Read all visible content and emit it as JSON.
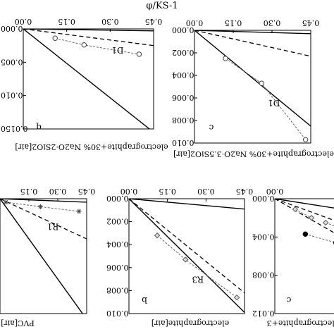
{
  "top_label": "φ/KS-1",
  "chart_data": [
    {
      "type": "line",
      "id": "p1",
      "panel_letter": "q",
      "xlabel": "electrographite+30% Na2O·2SiO2[air]",
      "xlim": [
        0,
        0.45
      ],
      "ylim": [
        0,
        0.015
      ],
      "xticks": [
        "0.00",
        "0.15",
        "0.30",
        "0.45"
      ],
      "yticks": [
        "0.000",
        "0.005",
        "0.010",
        "0.0150"
      ],
      "lines": [
        {
          "style": "solid",
          "x": [
            0,
            0.45
          ],
          "y": [
            0,
            0.0003
          ]
        },
        {
          "style": "dashed",
          "x": [
            0,
            0.45
          ],
          "y": [
            0,
            0.0025
          ]
        },
        {
          "style": "solid",
          "x": [
            0,
            0.45
          ],
          "y": [
            0,
            0.0155
          ]
        }
      ],
      "series": [
        {
          "name": "D1",
          "marker": "open-circle",
          "x": [
            0.11,
            0.21,
            0.4
          ],
          "y": [
            0.0014,
            0.0024,
            0.0038
          ]
        }
      ]
    },
    {
      "type": "line",
      "id": "p2",
      "panel_letter": "c",
      "xlabel": "electrographite+30% Na2O·3.5SiO2[air]",
      "xlim": [
        0,
        0.45
      ],
      "ylim": [
        0,
        0.01
      ],
      "xticks": [
        "0.00",
        "0.15",
        "0.30",
        "0.45"
      ],
      "yticks": [
        "0.000",
        "0.002",
        "0.004",
        "0.006",
        "0.008",
        "0.010"
      ],
      "lines": [
        {
          "style": "solid",
          "x": [
            0,
            0.45
          ],
          "y": [
            0,
            0.0003
          ]
        },
        {
          "style": "dashed",
          "x": [
            0,
            0.45
          ],
          "y": [
            0,
            0.0023
          ]
        },
        {
          "style": "solid",
          "x": [
            0,
            0.45
          ],
          "y": [
            0,
            0.0085
          ]
        }
      ],
      "series": [
        {
          "name": "D1",
          "marker": "open-circle",
          "x": [
            0.12,
            0.26,
            0.43
          ],
          "y": [
            0.0025,
            0.0047,
            0.0097
          ]
        }
      ]
    },
    {
      "type": "line",
      "id": "p3",
      "panel_letter": "",
      "xlabel": "PVC[air]",
      "xlim": [
        0,
        0.45
      ],
      "ylim": [
        0,
        0.01
      ],
      "xticks": [
        "0.15",
        "0.30",
        "0.45"
      ],
      "yticks": [],
      "lines": [
        {
          "style": "solid",
          "x": [
            0,
            0.45
          ],
          "y": [
            0,
            0.0003
          ]
        },
        {
          "style": "dashed",
          "x": [
            0,
            0.45
          ],
          "y": [
            0,
            0.0035
          ]
        },
        {
          "style": "solid",
          "x": [
            0,
            0.45
          ],
          "y": [
            0,
            0.0105
          ]
        }
      ],
      "series": [
        {
          "name": "R1",
          "marker": "asterisk",
          "x": [
            0.03,
            0.21,
            0.41
          ],
          "y": [
            0.0003,
            0.0007,
            0.0011
          ]
        }
      ]
    },
    {
      "type": "line",
      "id": "p4",
      "panel_letter": "b",
      "xlabel": "electrographite[air]",
      "xlim": [
        0,
        0.45
      ],
      "ylim": [
        0,
        0.01
      ],
      "xticks": [
        "0.00",
        "0.15",
        "0.30",
        "0.45"
      ],
      "yticks": [
        "0.000",
        "0.002",
        "0.004",
        "0.006",
        "0.008",
        "0.010"
      ],
      "lines": [
        {
          "style": "solid",
          "x": [
            0,
            0.45
          ],
          "y": [
            0,
            0.0009
          ]
        },
        {
          "style": "dashed",
          "x": [
            0,
            0.45
          ],
          "y": [
            0,
            0.0082
          ]
        },
        {
          "style": "solid",
          "x": [
            0,
            0.45
          ],
          "y": [
            0,
            0.0099
          ]
        }
      ],
      "series": [
        {
          "name": "R3",
          "marker": "open-diamond",
          "x": [
            0.11,
            0.22,
            0.42
          ],
          "y": [
            0.0032,
            0.0053,
            0.0086
          ]
        }
      ]
    },
    {
      "type": "line",
      "id": "p5",
      "panel_letter": "c",
      "xlabel": "electrographite+3",
      "xlim": [
        0,
        0.45
      ],
      "ylim": [
        0,
        0.012
      ],
      "xticks": [
        "0.00"
      ],
      "yticks": [
        "0.000",
        "0.004",
        "0.008",
        "0.012"
      ],
      "lines": [
        {
          "style": "solid",
          "x": [
            0,
            0.45
          ],
          "y": [
            0,
            0.0015
          ]
        },
        {
          "style": "dashed",
          "x": [
            0,
            0.45
          ],
          "y": [
            0,
            0.0035
          ]
        },
        {
          "style": "dashed",
          "x": [
            0,
            0.45
          ],
          "y": [
            0,
            0.0055
          ]
        }
      ],
      "series": [
        {
          "name": "",
          "marker": "filled-circle",
          "x": [
            0.15,
            0.3
          ],
          "y": [
            0.0037,
            0.0046
          ]
        },
        {
          "name": "",
          "marker": "open-diamond",
          "x": [
            0.25,
            0.35
          ],
          "y": [
            0.0025,
            0.0033
          ]
        },
        {
          "name": "",
          "marker": "open-diamond-gray",
          "x": [
            0.1,
            0.18
          ],
          "y": [
            0.0011,
            0.002
          ]
        }
      ]
    }
  ]
}
